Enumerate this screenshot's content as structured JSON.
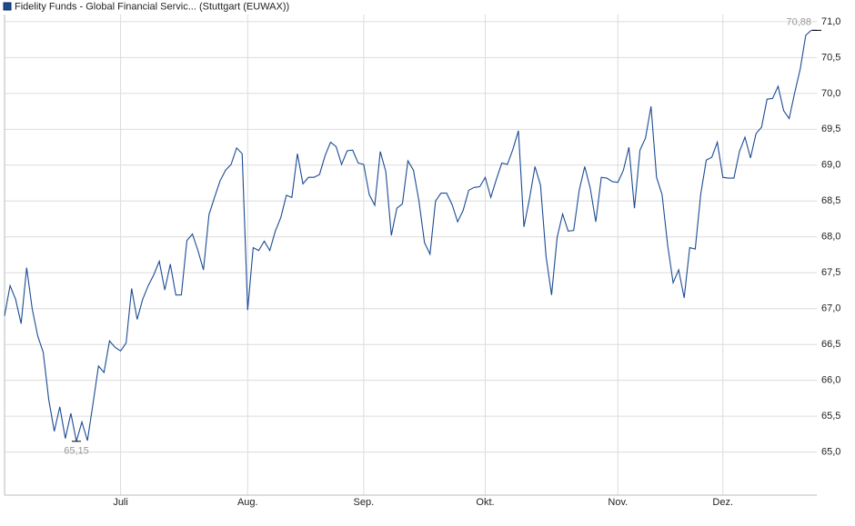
{
  "chart_data": {
    "type": "line",
    "title": "Fidelity Funds - Global Financial Servic... (Stuttgart (EUWAX))",
    "categories": [
      null,
      null,
      null,
      null,
      null,
      null,
      null,
      null,
      null,
      null,
      null,
      null,
      null,
      null,
      null,
      null,
      null,
      null,
      null,
      null,
      null,
      "Juli",
      null,
      null,
      null,
      null,
      null,
      null,
      null,
      null,
      null,
      null,
      null,
      null,
      null,
      null,
      null,
      null,
      null,
      null,
      null,
      null,
      null,
      null,
      "Aug.",
      null,
      null,
      null,
      null,
      null,
      null,
      null,
      null,
      null,
      null,
      null,
      null,
      null,
      null,
      null,
      null,
      null,
      null,
      null,
      null,
      "Sep.",
      null,
      null,
      null,
      null,
      null,
      null,
      null,
      null,
      null,
      null,
      null,
      null,
      null,
      null,
      null,
      null,
      null,
      null,
      null,
      null,
      null,
      "Okt.",
      null,
      null,
      null,
      null,
      null,
      null,
      null,
      null,
      null,
      null,
      null,
      null,
      null,
      null,
      null,
      null,
      null,
      null,
      null,
      null,
      null,
      null,
      null,
      "Nov.",
      null,
      null,
      null,
      null,
      null,
      null,
      null,
      null,
      null,
      null,
      null,
      null,
      null,
      null,
      null,
      null,
      null,
      null,
      "Dez.",
      null,
      null,
      null,
      null,
      null,
      null,
      null,
      null,
      null,
      null,
      null,
      null,
      null,
      null,
      null,
      null,
      null
    ],
    "series": [
      {
        "name": "Fidelity Funds - Global Financial Servic... (Stuttgart (EUWAX))",
        "color": "#1c4b94",
        "values": [
          66.9,
          67.32,
          67.13,
          66.79,
          67.57,
          67.0,
          66.62,
          66.39,
          65.73,
          65.29,
          65.63,
          65.19,
          65.54,
          65.15,
          65.42,
          65.16,
          65.67,
          66.2,
          66.11,
          66.55,
          66.46,
          66.41,
          66.52,
          67.28,
          66.85,
          67.13,
          67.32,
          67.47,
          67.66,
          67.26,
          67.62,
          67.19,
          67.19,
          67.95,
          68.04,
          67.81,
          67.54,
          68.31,
          68.55,
          68.78,
          68.93,
          69.01,
          69.24,
          69.16,
          66.98,
          67.85,
          67.81,
          67.94,
          67.81,
          68.08,
          68.27,
          68.58,
          68.55,
          69.16,
          68.74,
          68.83,
          68.83,
          68.87,
          69.13,
          69.32,
          69.26,
          69.01,
          69.2,
          69.21,
          69.03,
          69.01,
          68.59,
          68.44,
          69.19,
          68.91,
          68.02,
          68.4,
          68.46,
          69.06,
          68.93,
          68.5,
          67.92,
          67.76,
          68.5,
          68.61,
          68.61,
          68.45,
          68.21,
          68.37,
          68.65,
          68.69,
          68.7,
          68.83,
          68.55,
          68.8,
          69.03,
          69.01,
          69.22,
          69.48,
          68.14,
          68.53,
          68.98,
          68.72,
          67.73,
          67.19,
          67.99,
          68.32,
          68.08,
          68.09,
          68.65,
          68.98,
          68.68,
          68.21,
          68.83,
          68.82,
          68.77,
          68.76,
          68.93,
          69.25,
          68.4,
          69.21,
          69.38,
          69.82,
          68.83,
          68.59,
          67.89,
          67.36,
          67.54,
          67.15,
          67.85,
          67.83,
          68.6,
          69.07,
          69.11,
          69.32,
          68.83,
          68.82,
          68.82,
          69.19,
          69.39,
          69.1,
          69.44,
          69.53,
          69.92,
          69.93,
          70.1,
          69.76,
          69.65,
          70.01,
          70.34,
          70.81,
          70.88,
          70.88
        ]
      }
    ],
    "ylim": [
      64.4,
      71.1
    ],
    "yticks": [
      {
        "value": 65,
        "label": "65,0"
      },
      {
        "value": 65.5,
        "label": "65,5"
      },
      {
        "value": 66,
        "label": "66,0"
      },
      {
        "value": 66.5,
        "label": "66,5"
      },
      {
        "value": 67,
        "label": "67,0"
      },
      {
        "value": 67.5,
        "label": "67,5"
      },
      {
        "value": 68,
        "label": "68,0"
      },
      {
        "value": 68.5,
        "label": "68,5"
      },
      {
        "value": 69,
        "label": "69,0"
      },
      {
        "value": 69.5,
        "label": "69,5"
      },
      {
        "value": 70,
        "label": "70,0"
      },
      {
        "value": 70.5,
        "label": "70,5"
      },
      {
        "value": 71,
        "label": "71,0"
      }
    ],
    "grid": true,
    "annotations": [
      {
        "label": "70,88",
        "value": 70.88
      },
      {
        "label": "65,15",
        "value": 65.15
      }
    ]
  }
}
